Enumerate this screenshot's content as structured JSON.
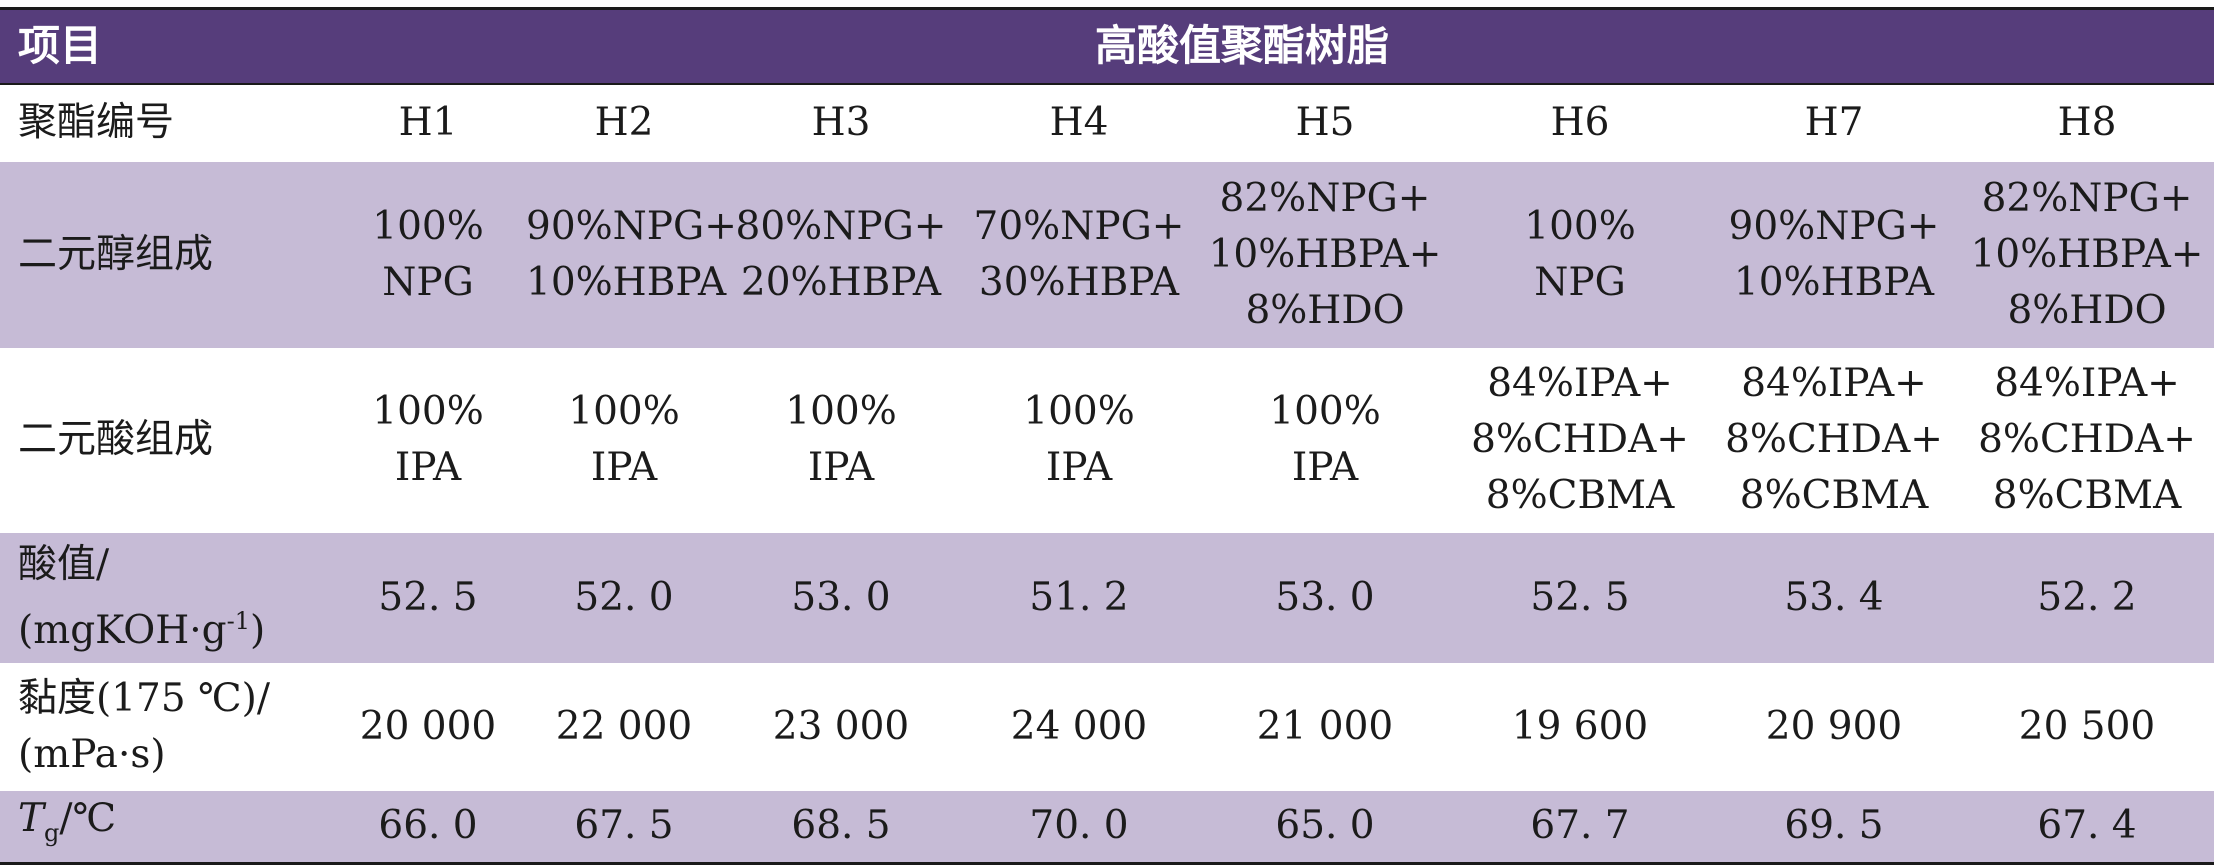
{
  "header": {
    "item_label": "项目",
    "group_label": "高酸值聚酯树脂"
  },
  "rows": {
    "id": {
      "label": "聚酯编号",
      "values": [
        "H1",
        "H2",
        "H3",
        "H4",
        "H5",
        "H6",
        "H7",
        "H8"
      ]
    },
    "diol": {
      "label": "二元醇组成",
      "values": [
        [
          "100%",
          "NPG"
        ],
        [
          "90%NPG+",
          "10%HBPA"
        ],
        [
          "80%NPG+",
          "20%HBPA"
        ],
        [
          "70%NPG+",
          "30%HBPA"
        ],
        [
          "82%NPG+",
          "10%HBPA+",
          "8%HDO"
        ],
        [
          "100%",
          "NPG"
        ],
        [
          "90%NPG+",
          "10%HBPA"
        ],
        [
          "82%NPG+",
          "10%HBPA+",
          "8%HDO"
        ]
      ]
    },
    "diacid": {
      "label": "二元酸组成",
      "values": [
        [
          "100%",
          "IPA"
        ],
        [
          "100%",
          "IPA"
        ],
        [
          "100%",
          "IPA"
        ],
        [
          "100%",
          "IPA"
        ],
        [
          "100%",
          "IPA"
        ],
        [
          "84%IPA+",
          "8%CHDA+",
          "8%CBMA"
        ],
        [
          "84%IPA+",
          "8%CHDA+",
          "8%CBMA"
        ],
        [
          "84%IPA+",
          "8%CHDA+",
          "8%CBMA"
        ]
      ]
    },
    "acid_value": {
      "label_line1": "酸值/",
      "label_line2_pre": "(mgKOH·g",
      "label_line2_sup": "-1",
      "label_line2_post": ")",
      "values": [
        "52. 5",
        "52. 0",
        "53. 0",
        "51. 2",
        "53. 0",
        "52. 5",
        "53. 4",
        "52. 2"
      ]
    },
    "viscosity": {
      "label_line1": "黏度(175 ℃)/",
      "label_line2": "(mPa·s)",
      "values": [
        "20 000",
        "22 000",
        "23 000",
        "24 000",
        "21 000",
        "19 600",
        "20 900",
        "20 500"
      ]
    },
    "tg": {
      "label_T": "T",
      "label_sub": "g",
      "label_unit": "/℃",
      "values": [
        "66. 0",
        "67. 5",
        "68. 5",
        "70. 0",
        "65. 0",
        "67. 7",
        "69. 5",
        "67. 4"
      ]
    }
  }
}
